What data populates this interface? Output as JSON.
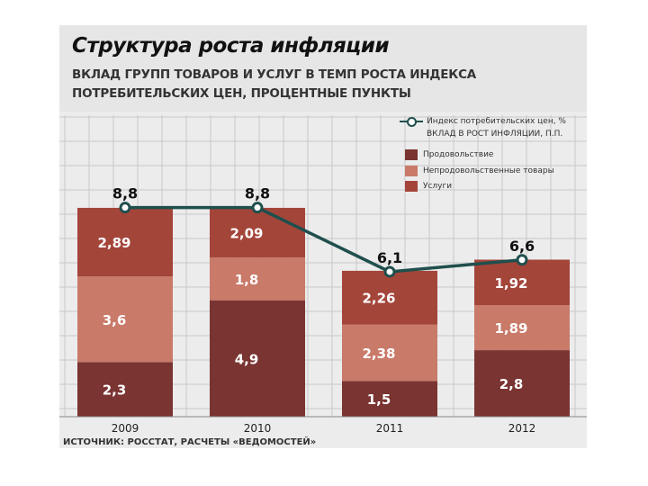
{
  "title": "Структура роста инфляции",
  "subtitle_line1": "ВКЛАД ГРУПП ТОВАРОВ И УСЛУГ В ТЕМП РОСТА ИНДЕКСА",
  "subtitle_line2": "ПОТРЕБИТЕЛЬСКИХ ЦЕН, ПРОЦЕНТНЫЕ ПУНКТЫ",
  "source": "ИСТОЧНИК: РОССТАТ, РАСЧЕТЫ «ВЕДОМОСТЕЙ»",
  "legend": {
    "line_label_1": "Индекс потребительских цен, %",
    "line_label_2": "ВКЛАД В РОСТ ИНФЛЯЦИИ, П.П.",
    "food": "Продовольствие",
    "nonfood": "Непродовольственные товары",
    "services": "Услуги"
  },
  "colors": {
    "food": "#7a3431",
    "nonfood": "#c97a69",
    "services": "#a4453a",
    "line": "#1f4f4c",
    "grid": "#c8c8c8"
  },
  "chart_data": {
    "type": "bar",
    "stacked": true,
    "categories": [
      "2009",
      "2010",
      "2011",
      "2012"
    ],
    "series": [
      {
        "name": "Продовольствие",
        "values": [
          2.3,
          4.9,
          1.5,
          2.8
        ]
      },
      {
        "name": "Непродовольственные товары",
        "values": [
          3.6,
          1.8,
          2.38,
          1.89
        ]
      },
      {
        "name": "Услуги",
        "values": [
          2.89,
          2.09,
          2.26,
          1.92
        ]
      }
    ],
    "value_labels": [
      [
        "2,3",
        "4,9",
        "1,5",
        "2,8"
      ],
      [
        "3,6",
        "1,8",
        "2,38",
        "1,89"
      ],
      [
        "2,89",
        "2,09",
        "2,26",
        "1,92"
      ]
    ],
    "line": {
      "name": "Индекс потребительских цен, %",
      "values": [
        8.8,
        8.8,
        6.1,
        6.6
      ],
      "labels": [
        "8,8",
        "8,8",
        "6,1",
        "6,6"
      ]
    },
    "ylim": [
      0,
      10
    ],
    "grid": true
  }
}
